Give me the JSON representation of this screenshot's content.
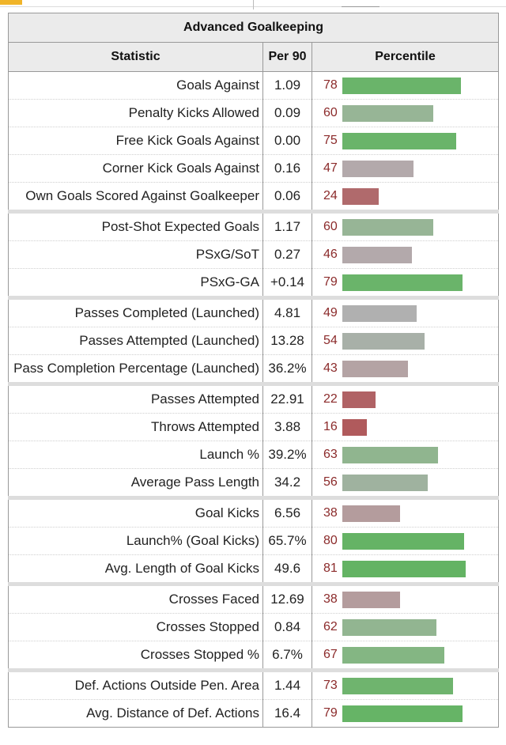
{
  "title": "Advanced Goalkeeping",
  "headers": {
    "statistic": "Statistic",
    "per90": "Per 90",
    "percentile": "Percentile"
  },
  "rows": [
    {
      "stat": "Goals Against",
      "per90": "1.09",
      "pct": "78",
      "pct_value": 78,
      "color": "#6ab46a",
      "group_start": true
    },
    {
      "stat": "Penalty Kicks Allowed",
      "per90": "0.09",
      "pct": "60",
      "pct_value": 60,
      "color": "#97b596",
      "group_start": false
    },
    {
      "stat": "Free Kick Goals Against",
      "per90": "0.00",
      "pct": "75",
      "pct_value": 75,
      "color": "#6ab46a",
      "group_start": false
    },
    {
      "stat": "Corner Kick Goals Against",
      "per90": "0.16",
      "pct": "47",
      "pct_value": 47,
      "color": "#b3a9ab",
      "group_start": false
    },
    {
      "stat": "Own Goals Scored Against Goalkeeper",
      "per90": "0.06",
      "pct": "24",
      "pct_value": 24,
      "color": "#b06a6c",
      "group_start": false
    },
    {
      "stat": "Post-Shot Expected Goals",
      "per90": "1.17",
      "pct": "60",
      "pct_value": 60,
      "color": "#97b596",
      "group_start": true
    },
    {
      "stat": "PSxG/SoT",
      "per90": "0.27",
      "pct": "46",
      "pct_value": 46,
      "color": "#b3a9ab",
      "group_start": false
    },
    {
      "stat": "PSxG-GA",
      "per90": "+0.14",
      "pct": "79",
      "pct_value": 79,
      "color": "#6ab46a",
      "group_start": false
    },
    {
      "stat": "Passes Completed (Launched)",
      "per90": "4.81",
      "pct": "49",
      "pct_value": 49,
      "color": "#b0b0b0",
      "group_start": true
    },
    {
      "stat": "Passes Attempted (Launched)",
      "per90": "13.28",
      "pct": "54",
      "pct_value": 54,
      "color": "#a8b0a8",
      "group_start": false
    },
    {
      "stat": "Pass Completion Percentage (Launched)",
      "per90": "36.2%",
      "pct": "43",
      "pct_value": 43,
      "color": "#b4a3a4",
      "group_start": false
    },
    {
      "stat": "Passes Attempted",
      "per90": "22.91",
      "pct": "22",
      "pct_value": 22,
      "color": "#b06265",
      "group_start": true
    },
    {
      "stat": "Throws Attempted",
      "per90": "3.88",
      "pct": "16",
      "pct_value": 16,
      "color": "#b05a5c",
      "group_start": false
    },
    {
      "stat": "Launch %",
      "per90": "39.2%",
      "pct": "63",
      "pct_value": 63,
      "color": "#90b58f",
      "group_start": false
    },
    {
      "stat": "Average Pass Length",
      "per90": "34.2",
      "pct": "56",
      "pct_value": 56,
      "color": "#9fb29f",
      "group_start": false
    },
    {
      "stat": "Goal Kicks",
      "per90": "6.56",
      "pct": "38",
      "pct_value": 38,
      "color": "#b49c9d",
      "group_start": true
    },
    {
      "stat": "Launch% (Goal Kicks)",
      "per90": "65.7%",
      "pct": "80",
      "pct_value": 80,
      "color": "#65b365",
      "group_start": false
    },
    {
      "stat": "Avg. Length of Goal Kicks",
      "per90": "49.6",
      "pct": "81",
      "pct_value": 81,
      "color": "#63b363",
      "group_start": false
    },
    {
      "stat": "Crosses Faced",
      "per90": "12.69",
      "pct": "38",
      "pct_value": 38,
      "color": "#b49c9d",
      "group_start": true
    },
    {
      "stat": "Crosses Stopped",
      "per90": "0.84",
      "pct": "62",
      "pct_value": 62,
      "color": "#92b591",
      "group_start": false
    },
    {
      "stat": "Crosses Stopped %",
      "per90": "6.7%",
      "pct": "67",
      "pct_value": 67,
      "color": "#84b683",
      "group_start": false
    },
    {
      "stat": "Def. Actions Outside Pen. Area",
      "per90": "1.44",
      "pct": "73",
      "pct_value": 73,
      "color": "#6fb46e",
      "group_start": true
    },
    {
      "stat": "Avg. Distance of Def. Actions",
      "per90": "16.4",
      "pct": "79",
      "pct_value": 79,
      "color": "#66b466",
      "group_start": false
    }
  ]
}
